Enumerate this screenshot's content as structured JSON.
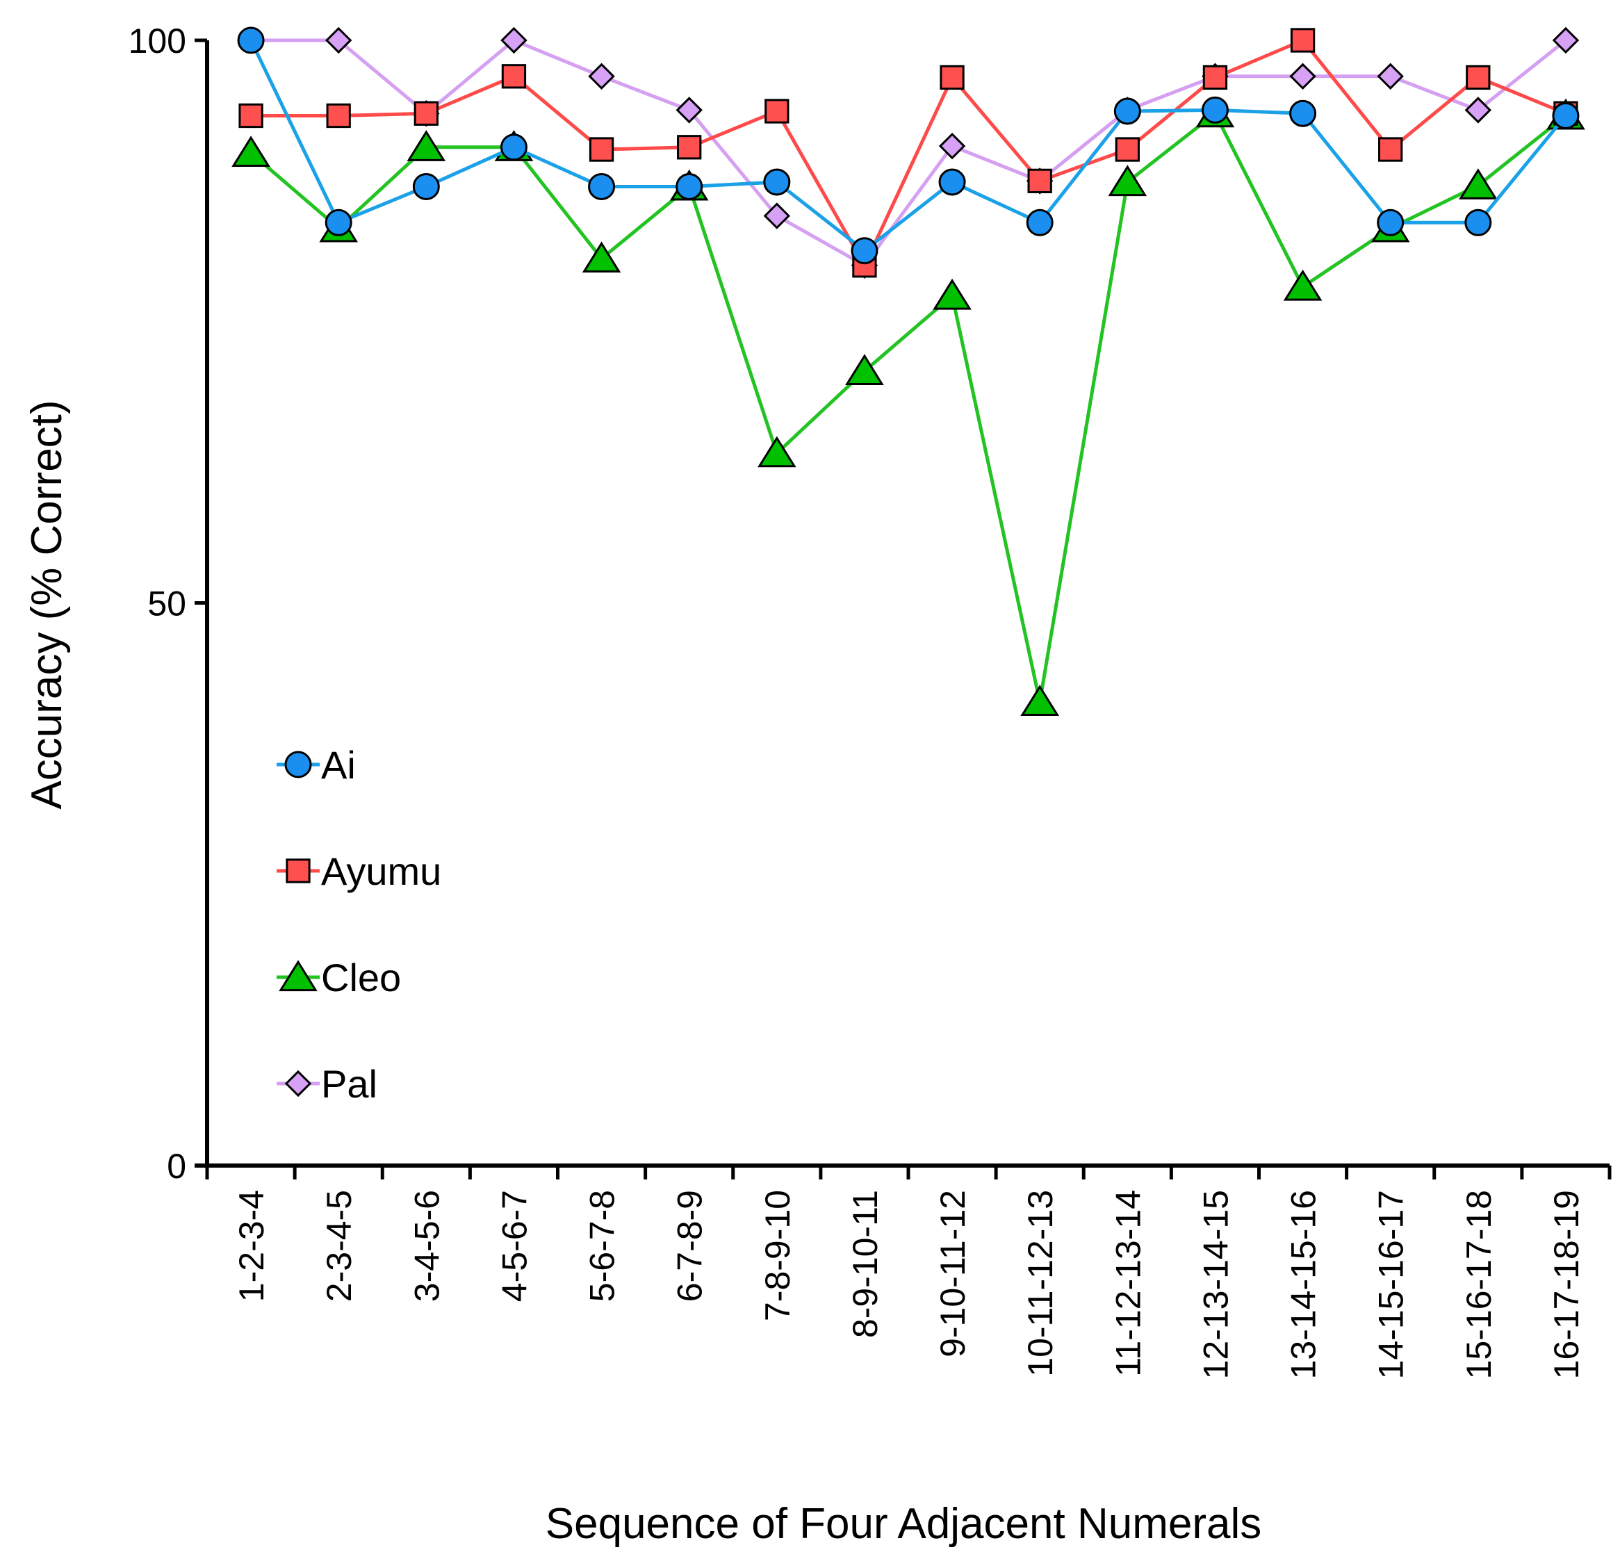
{
  "chart_data": {
    "type": "line",
    "title": "",
    "xlabel": "Sequence of Four Adjacent Numerals",
    "ylabel": "Accuracy (% Correct)",
    "ylim": [
      0,
      100
    ],
    "yticks": [
      "0",
      "50",
      "100"
    ],
    "grid": false,
    "legend_position": "left-middle",
    "categories": [
      "1-2-3-4",
      "2-3-4-5",
      "3-4-5-6",
      "4-5-6-7",
      "5-6-7-8",
      "6-7-8-9",
      "7-8-9-10",
      "8-9-10-11",
      "9-10-11-12",
      "10-11-12-13",
      "11-12-13-14",
      "12-13-14-15",
      "13-14-15-16",
      "14-15-16-17",
      "15-16-17-18",
      "16-17-18-19"
    ],
    "series": [
      {
        "name": "Ai",
        "marker": "circle",
        "line_color": "#1ba1e8",
        "fill_color": "#1a8ff0",
        "values": [
          100,
          83.8,
          87,
          90.5,
          87,
          87,
          87.4,
          81.3,
          87.4,
          83.8,
          93.7,
          93.8,
          93.5,
          83.8,
          83.8,
          93.3
        ]
      },
      {
        "name": "Ayumu",
        "marker": "square",
        "line_color": "#ff4a4a",
        "fill_color": "#ff5050",
        "values": [
          93.3,
          93.3,
          93.5,
          96.8,
          90.3,
          90.5,
          93.7,
          80,
          96.7,
          87.5,
          90.3,
          96.7,
          100,
          90.3,
          96.7,
          93.5
        ]
      },
      {
        "name": "Cleo",
        "marker": "triangle",
        "line_color": "#22c322",
        "fill_color": "#00c000",
        "values": [
          90,
          83.3,
          90.5,
          90.5,
          80.6,
          87,
          63.3,
          70.6,
          77.3,
          41.2,
          87.4,
          93.5,
          78.1,
          83.3,
          87.1,
          93.3
        ]
      },
      {
        "name": "Pal",
        "marker": "diamond",
        "line_color": "#d59ff2",
        "fill_color": "#d7a2f5",
        "values": [
          100,
          100,
          93.5,
          100,
          96.8,
          93.8,
          84.4,
          80,
          90.6,
          87.5,
          93.8,
          96.8,
          96.8,
          96.8,
          93.8,
          100
        ]
      }
    ]
  }
}
